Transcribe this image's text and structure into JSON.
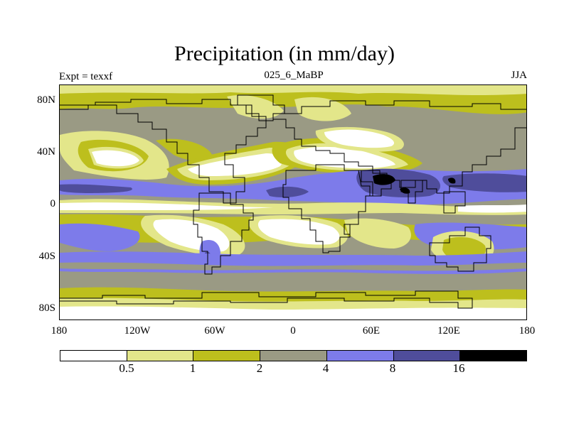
{
  "title": "Precipitation (in mm/day)",
  "left_label": "Expt = texxf",
  "center_label": "025_6_MaBP",
  "right_label": "JJA",
  "y_ticks": [
    "80N",
    "40N",
    "0",
    "40S",
    "80S"
  ],
  "x_ticks": [
    "180",
    "120W",
    "60W",
    "0",
    "60E",
    "120E",
    "180"
  ],
  "colorbar": {
    "colors": [
      "#ffffff",
      "#e3e68a",
      "#bdbf1d",
      "#9a9a84",
      "#7d7bea",
      "#4f4d9b",
      "#000000"
    ],
    "labels": [
      "0.5",
      "1",
      "2",
      "4",
      "8",
      "16"
    ]
  },
  "map": {
    "projection": "cylindrical-equidistant",
    "lon_range": [
      -180,
      180
    ],
    "lat_range": [
      -90,
      90
    ],
    "contour_bands": [
      {
        "range": "< 0.5",
        "color": "#ffffff"
      },
      {
        "range": "0.5-1",
        "color": "#e3e68a"
      },
      {
        "range": "1-2",
        "color": "#bdbf1d"
      },
      {
        "range": "2-4",
        "color": "#9a9a84"
      },
      {
        "range": "4-8",
        "color": "#7d7bea"
      },
      {
        "range": "8-16",
        "color": "#4f4d9b"
      },
      {
        "range": "> 16",
        "color": "#000000"
      }
    ]
  }
}
